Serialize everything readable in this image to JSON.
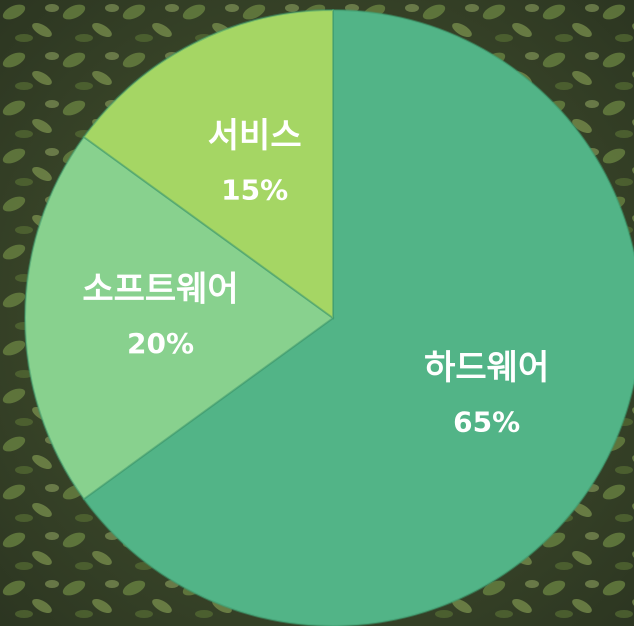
{
  "chart_data": {
    "type": "pie",
    "categories": [
      "하드웨어",
      "소프트웨어",
      "서비스"
    ],
    "values": [
      65,
      20,
      15
    ],
    "value_labels": [
      "65%",
      "20%",
      "15%"
    ],
    "colors": [
      "#52b487",
      "#88d18e",
      "#a5d664"
    ],
    "start_angle": 0,
    "direction": "clockwise"
  }
}
